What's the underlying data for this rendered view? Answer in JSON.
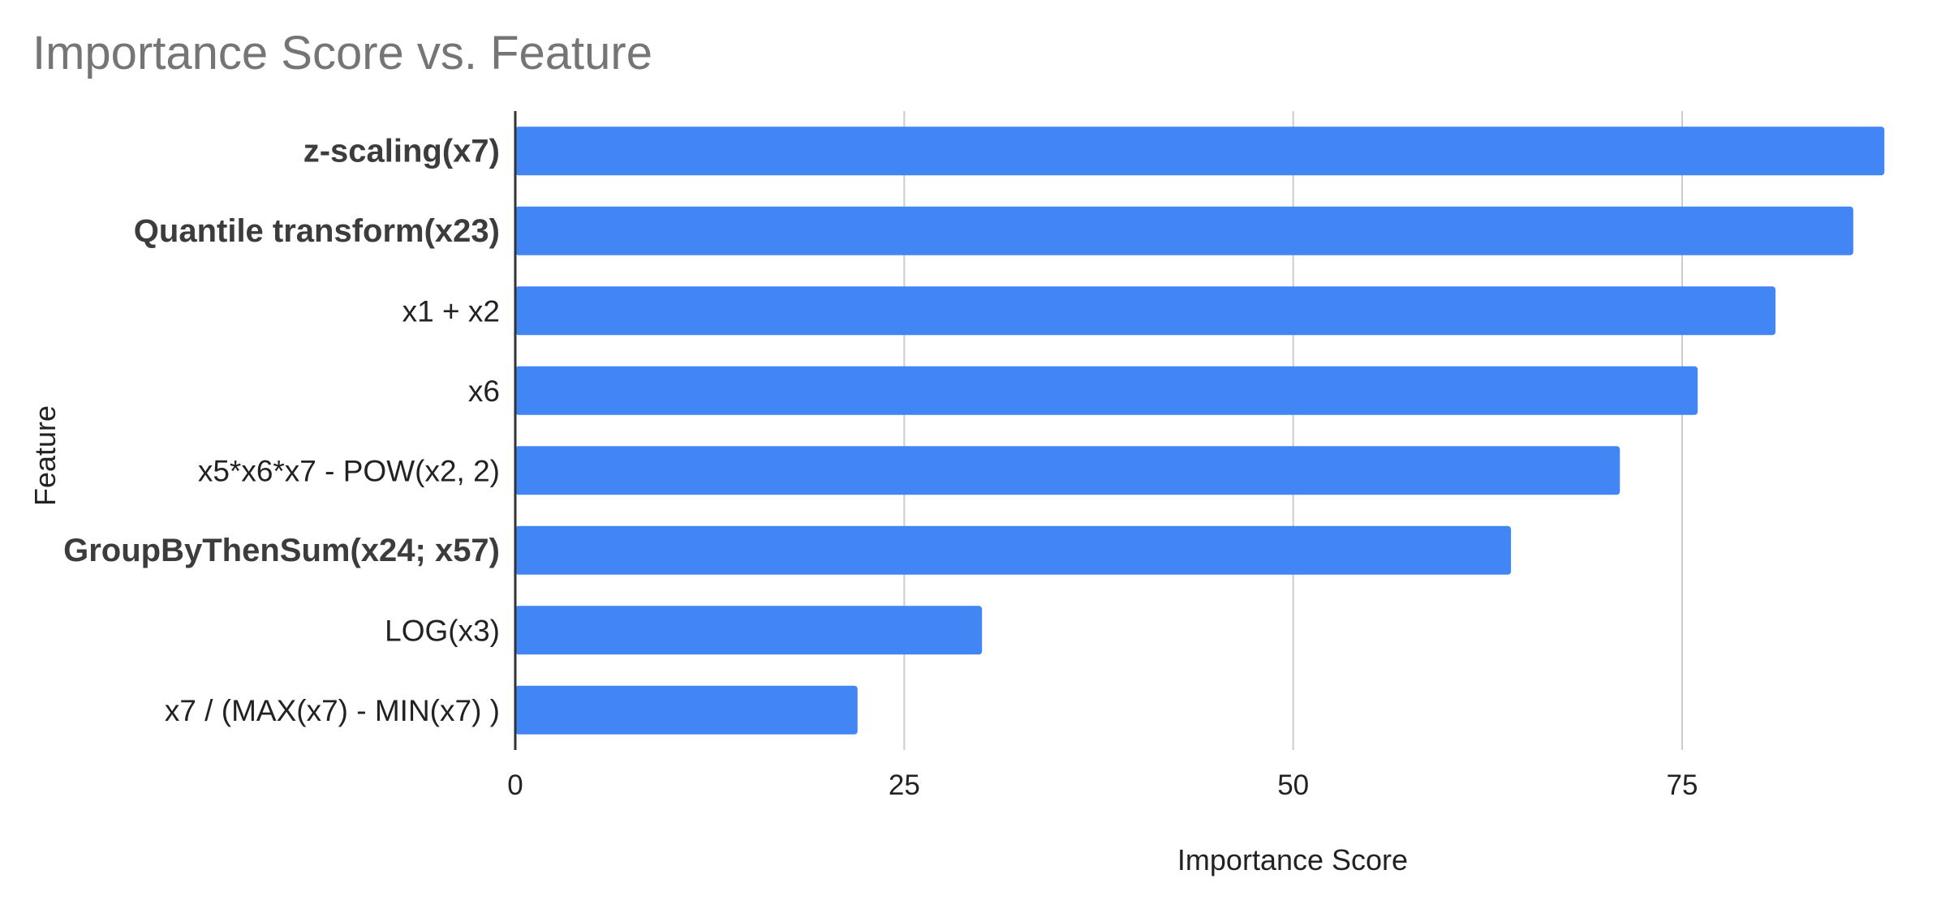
{
  "chart_data": {
    "type": "bar",
    "orientation": "horizontal",
    "title": "Importance Score vs. Feature",
    "xlabel": "Importance Score",
    "ylabel": "Feature",
    "categories": [
      "z-scaling(x7)",
      "Quantile transform(x23)",
      "x1 + x2",
      "x6",
      "x5*x6*x7 - POW(x2, 2)",
      "GroupByThenSum(x24; x57)",
      "LOG(x3)",
      "x7 / (MAX(x7) - MIN(x7) )"
    ],
    "bold_categories": [
      "z-scaling(x7)",
      "Quantile transform(x23)",
      "GroupByThenSum(x24; x57)"
    ],
    "values": [
      88,
      86,
      81,
      76,
      71,
      64,
      30,
      22
    ],
    "xlim": [
      0,
      88
    ],
    "xticks": [
      0,
      25,
      50,
      75
    ],
    "grid": true,
    "legend": "none",
    "bar_color": "#4285f4"
  }
}
